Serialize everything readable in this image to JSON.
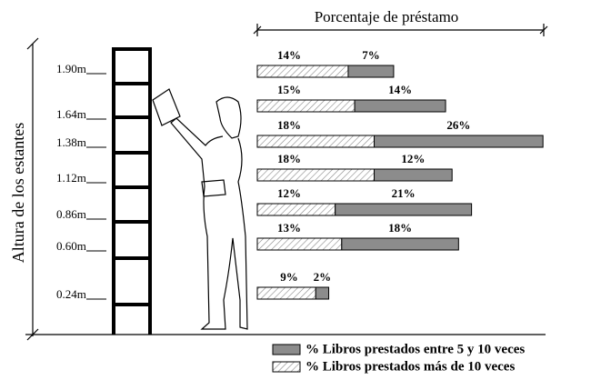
{
  "chart_data": {
    "type": "bar",
    "orientation": "horizontal",
    "stacked": true,
    "title": "Porcentaje de préstamo",
    "y_label": "Altura de los estantes",
    "categories": [
      "1.90m",
      "1.64m",
      "1.38m",
      "1.12m",
      "0.86m",
      "0.60m",
      "0.24m"
    ],
    "series": [
      {
        "name": "% Libros prestados más de 10 veces",
        "color": "hatched",
        "values": [
          14,
          15,
          18,
          18,
          12,
          13,
          9
        ],
        "value_labels": [
          "14%",
          "15%",
          "18%",
          "18%",
          "12%",
          "13%",
          "9%"
        ]
      },
      {
        "name": "% Libros prestados entre 5 y 10 veces",
        "color": "#8c8c8c",
        "values": [
          7,
          14,
          26,
          12,
          21,
          18,
          2
        ],
        "value_labels": [
          "7%",
          "14%",
          "26%",
          "12%",
          "21%",
          "18%",
          "2%"
        ]
      }
    ]
  }
}
